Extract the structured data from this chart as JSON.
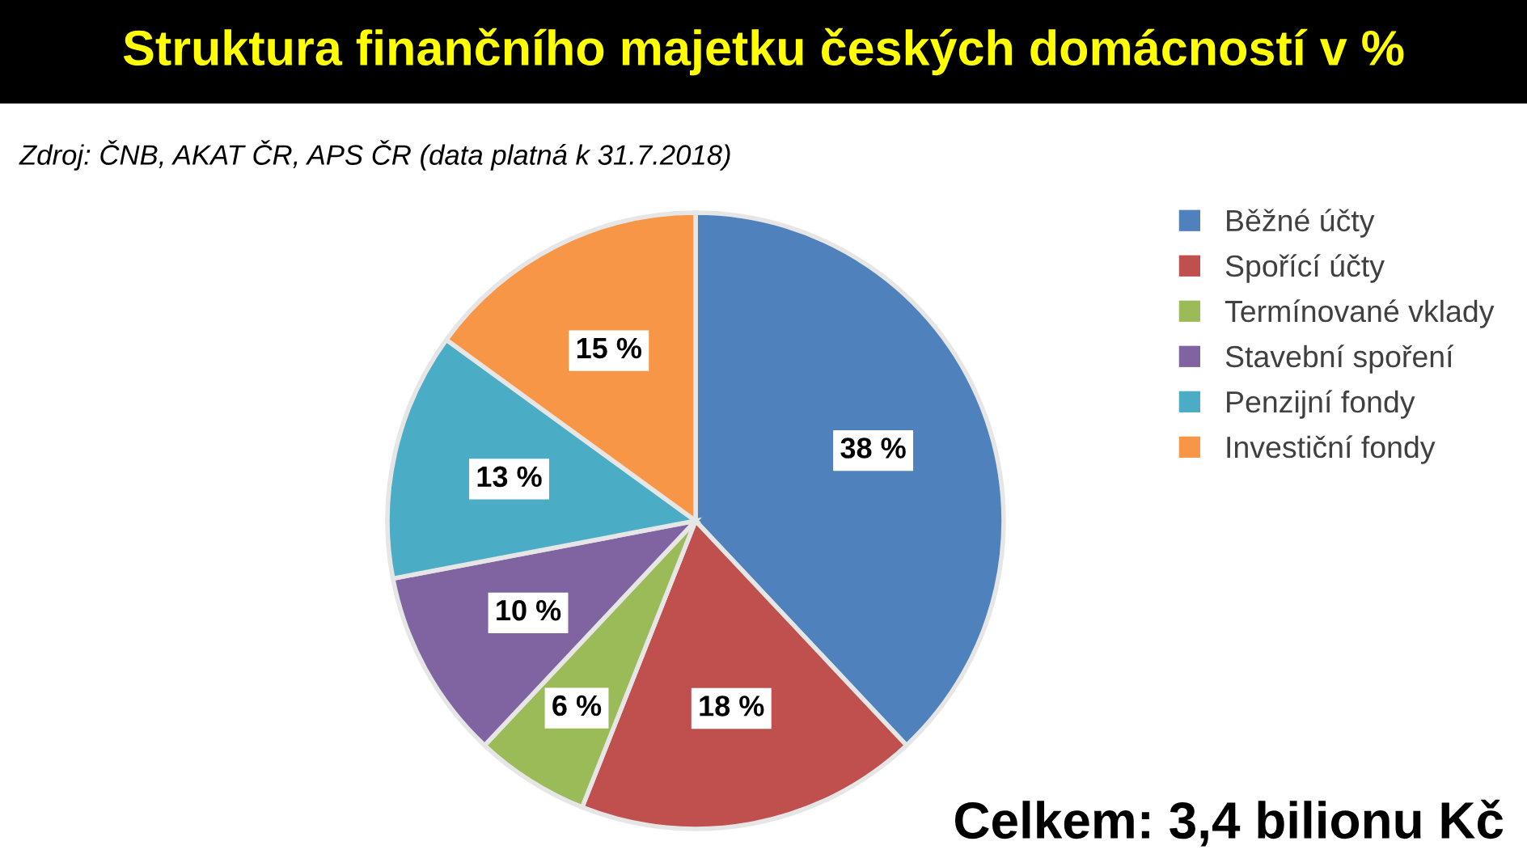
{
  "chart_data": {
    "type": "pie",
    "title": "Struktura finančního majetku českých domácností v %",
    "annotations": [
      "Zdroj: ČNB, AKAT ČR, APS ČR (data platná k 31.7.2018)",
      "Celkem: 3,4 bilionu Kč"
    ],
    "categories": [
      "Běžné účty",
      "Spořící účty",
      "Termínované vklady",
      "Stavební spoření",
      "Penzijní fondy",
      "Investiční fondy"
    ],
    "values": [
      38,
      18,
      6,
      10,
      13,
      15
    ],
    "value_labels": [
      "38 %",
      "18 %",
      "6 %",
      "10 %",
      "13 %",
      "15 %"
    ],
    "colors": [
      "#4f81bd",
      "#c0504d",
      "#9bbb59",
      "#8064a2",
      "#4bacc6",
      "#f79646"
    ],
    "legend": "right"
  }
}
